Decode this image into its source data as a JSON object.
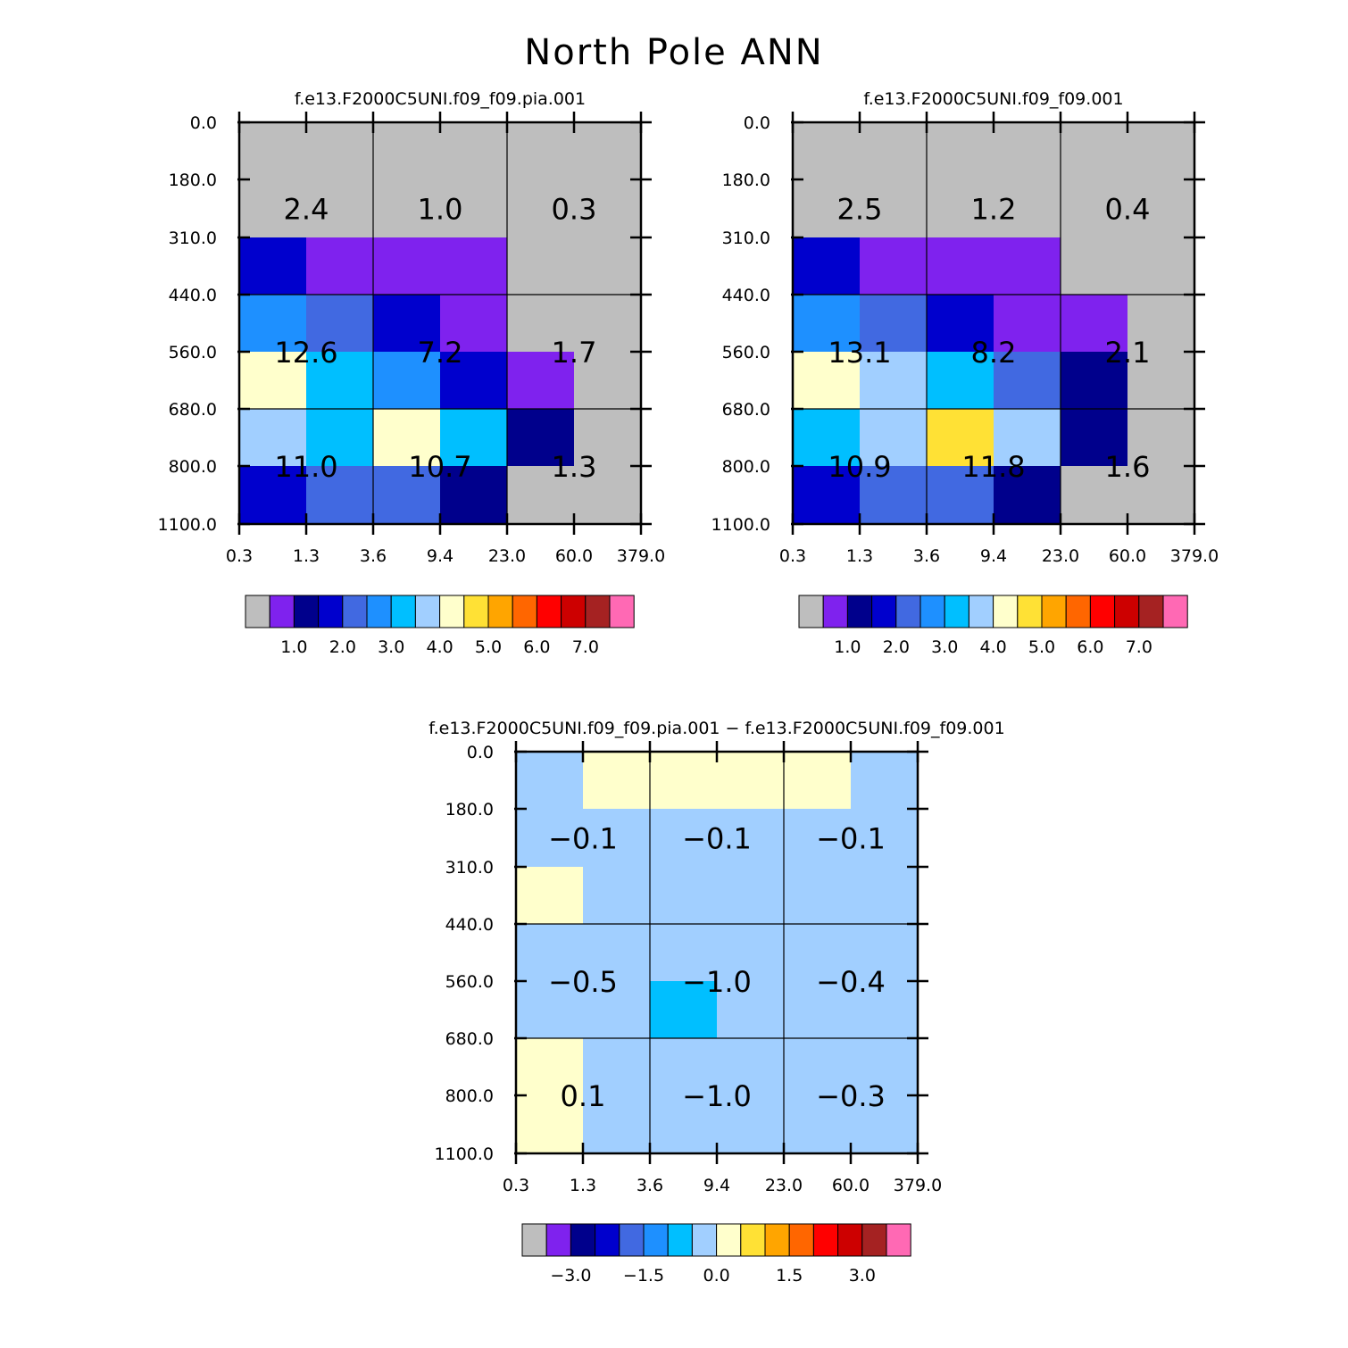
{
  "title": "North Pole ANN",
  "colors": {
    "palette": [
      "#bebebe",
      "#7f22ee",
      "#00008c",
      "#0000cd",
      "#4169e1",
      "#1e90ff",
      "#00bfff",
      "#a1cfff",
      "#ffffcc",
      "#ffe135",
      "#ffa500",
      "#ff6600",
      "#ff0000",
      "#cd0000",
      "#a52222",
      "#ff69b4"
    ]
  },
  "chart_data": [
    {
      "type": "heatmap",
      "name": "panel-model",
      "title": "f.e13.F2000C5UNI.f09_f09.pia.001",
      "x_ticks": [
        "0.3",
        "1.3",
        "3.6",
        "9.4",
        "23.0",
        "60.0",
        "379.0"
      ],
      "y_ticks": [
        "0.0",
        "180.0",
        "310.0",
        "440.0",
        "560.0",
        "680.0",
        "800.0",
        "1100.0"
      ],
      "xlabel": "",
      "ylabel": "",
      "cells": [
        [
          0,
          0,
          0,
          0,
          0,
          0
        ],
        [
          0,
          0,
          0,
          0,
          0,
          0
        ],
        [
          3,
          1,
          1,
          1,
          0,
          0
        ],
        [
          5,
          4,
          3,
          1,
          0,
          0
        ],
        [
          8,
          6,
          5,
          3,
          1,
          0
        ],
        [
          7,
          6,
          8,
          6,
          2,
          0
        ],
        [
          3,
          4,
          4,
          2,
          0,
          0
        ]
      ],
      "totals": [
        {
          "value": "2.4",
          "col": 1,
          "row": 1.5
        },
        {
          "value": "1.0",
          "col": 3,
          "row": 1.5
        },
        {
          "value": "0.3",
          "col": 5,
          "row": 1.5
        },
        {
          "value": "12.6",
          "col": 1,
          "row": 4
        },
        {
          "value": "7.2",
          "col": 3,
          "row": 4
        },
        {
          "value": "1.7",
          "col": 5,
          "row": 4
        },
        {
          "value": "11.0",
          "col": 1,
          "row": 6
        },
        {
          "value": "10.7",
          "col": 3,
          "row": 6
        },
        {
          "value": "1.3",
          "col": 5,
          "row": 6
        }
      ],
      "colorbar": {
        "labels": [
          "1.0",
          "2.0",
          "3.0",
          "4.0",
          "5.0",
          "6.0",
          "7.0"
        ]
      }
    },
    {
      "type": "heatmap",
      "name": "panel-obs",
      "title": "f.e13.F2000C5UNI.f09_f09.001",
      "x_ticks": [
        "0.3",
        "1.3",
        "3.6",
        "9.4",
        "23.0",
        "60.0",
        "379.0"
      ],
      "y_ticks": [
        "0.0",
        "180.0",
        "310.0",
        "440.0",
        "560.0",
        "680.0",
        "800.0",
        "1100.0"
      ],
      "xlabel": "",
      "ylabel": "",
      "cells": [
        [
          0,
          0,
          0,
          0,
          0,
          0
        ],
        [
          0,
          0,
          0,
          0,
          0,
          0
        ],
        [
          3,
          1,
          1,
          1,
          0,
          0
        ],
        [
          5,
          4,
          3,
          1,
          1,
          0
        ],
        [
          8,
          7,
          6,
          4,
          2,
          0
        ],
        [
          6,
          7,
          9,
          7,
          2,
          0
        ],
        [
          3,
          4,
          4,
          2,
          0,
          0
        ]
      ],
      "totals": [
        {
          "value": "2.5",
          "col": 1,
          "row": 1.5
        },
        {
          "value": "1.2",
          "col": 3,
          "row": 1.5
        },
        {
          "value": "0.4",
          "col": 5,
          "row": 1.5
        },
        {
          "value": "13.1",
          "col": 1,
          "row": 4
        },
        {
          "value": "8.2",
          "col": 3,
          "row": 4
        },
        {
          "value": "2.1",
          "col": 5,
          "row": 4
        },
        {
          "value": "10.9",
          "col": 1,
          "row": 6
        },
        {
          "value": "11.8",
          "col": 3,
          "row": 6
        },
        {
          "value": "1.6",
          "col": 5,
          "row": 6
        }
      ],
      "colorbar": {
        "labels": [
          "1.0",
          "2.0",
          "3.0",
          "4.0",
          "5.0",
          "6.0",
          "7.0"
        ]
      }
    },
    {
      "type": "heatmap",
      "name": "panel-diff",
      "title": "f.e13.F2000C5UNI.f09_f09.pia.001 − f.e13.F2000C5UNI.f09_f09.001",
      "x_ticks": [
        "0.3",
        "1.3",
        "3.6",
        "9.4",
        "23.0",
        "60.0",
        "379.0"
      ],
      "y_ticks": [
        "0.0",
        "180.0",
        "310.0",
        "440.0",
        "560.0",
        "680.0",
        "800.0",
        "1100.0"
      ],
      "xlabel": "",
      "ylabel": "",
      "cells": [
        [
          7,
          8,
          8,
          8,
          8,
          7
        ],
        [
          7,
          7,
          7,
          7,
          7,
          7
        ],
        [
          8,
          7,
          7,
          7,
          7,
          7
        ],
        [
          7,
          7,
          7,
          7,
          7,
          7
        ],
        [
          7,
          7,
          6,
          7,
          7,
          7
        ],
        [
          8,
          7,
          7,
          7,
          7,
          7
        ],
        [
          8,
          7,
          7,
          7,
          7,
          7
        ]
      ],
      "totals": [
        {
          "value": "−0.1",
          "col": 1,
          "row": 1.5
        },
        {
          "value": "−0.1",
          "col": 3,
          "row": 1.5
        },
        {
          "value": "−0.1",
          "col": 5,
          "row": 1.5
        },
        {
          "value": "−0.5",
          "col": 1,
          "row": 4
        },
        {
          "value": "−1.0",
          "col": 3,
          "row": 4
        },
        {
          "value": "−0.4",
          "col": 5,
          "row": 4
        },
        {
          "value": "0.1",
          "col": 1,
          "row": 6
        },
        {
          "value": "−1.0",
          "col": 3,
          "row": 6
        },
        {
          "value": "−0.3",
          "col": 5,
          "row": 6
        }
      ],
      "colorbar": {
        "labels": [
          "−3.0",
          "−1.5",
          "0.0",
          "1.5",
          "3.0"
        ]
      }
    }
  ]
}
